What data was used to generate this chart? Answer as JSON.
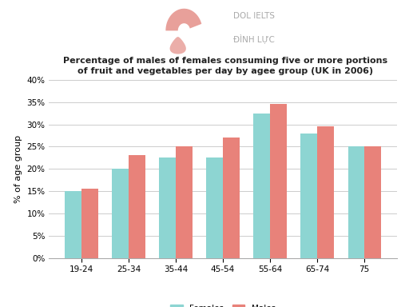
{
  "title_line1": "Percentage of males of females consuming five or more portions",
  "title_line2": "of fruit and vegetables per day by agee group (UK in 2006)",
  "categories": [
    "19-24",
    "25-34",
    "35-44",
    "45-54",
    "55-64",
    "65-74",
    "75"
  ],
  "females": [
    15,
    20,
    22.5,
    22.5,
    32.5,
    28,
    25
  ],
  "males": [
    15.5,
    23,
    25,
    27,
    34.5,
    29.5,
    25
  ],
  "female_color": "#8dd5d2",
  "male_color": "#e8827a",
  "ylabel": "% of age group",
  "ylim": [
    0,
    40
  ],
  "yticks": [
    0,
    5,
    10,
    15,
    20,
    25,
    30,
    35,
    40
  ],
  "ytick_labels": [
    "0%",
    "5%",
    "10%",
    "15%",
    "20%",
    "25%",
    "30%",
    "35%",
    "40%"
  ],
  "background_color": "#ffffff",
  "grid_color": "#cccccc",
  "title_fontsize": 8,
  "axis_fontsize": 8,
  "tick_fontsize": 7.5,
  "legend_labels": [
    "Females",
    "Males"
  ],
  "bar_width": 0.35,
  "logo_text1": "DOL IELTS",
  "logo_text2": "ĐÌNH LỰC"
}
